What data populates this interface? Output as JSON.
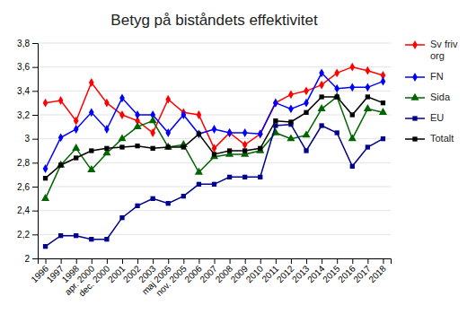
{
  "chart_data": {
    "type": "line",
    "title": "Betyg på biståndets effektivitet",
    "categories": [
      "1996",
      "1997",
      "1998",
      "apr. 2000",
      "dec. 2000",
      "2001",
      "2002",
      "2003",
      "maj 2005",
      "nov. 2005",
      "2006",
      "2007",
      "2008",
      "2009",
      "2010",
      "2011",
      "2012",
      "2013",
      "2014",
      "2015",
      "2016",
      "2017",
      "2018"
    ],
    "series": [
      {
        "name": "Sv friv\norg",
        "color": "#ff0000",
        "marker": "diamond",
        "values": [
          3.3,
          3.32,
          3.15,
          3.47,
          3.3,
          3.2,
          3.15,
          3.05,
          3.33,
          3.22,
          3.2,
          2.92,
          3.05,
          2.95,
          3.04,
          3.3,
          3.37,
          3.4,
          3.45,
          3.55,
          3.6,
          3.57,
          3.53
        ]
      },
      {
        "name": "FN",
        "color": "#0000ff",
        "marker": "diamond",
        "values": [
          2.75,
          3.01,
          3.08,
          3.22,
          3.08,
          3.34,
          3.2,
          3.2,
          3.05,
          3.2,
          3.04,
          3.08,
          3.05,
          3.05,
          3.04,
          3.3,
          3.25,
          3.3,
          3.55,
          3.42,
          3.43,
          3.43,
          3.48
        ]
      },
      {
        "name": "Sida",
        "color": "#006400",
        "marker": "triangle",
        "values": [
          2.5,
          2.78,
          2.92,
          2.74,
          2.88,
          3.0,
          3.1,
          3.15,
          2.93,
          2.95,
          2.72,
          2.85,
          2.87,
          2.87,
          2.9,
          3.05,
          3.0,
          3.03,
          3.25,
          3.35,
          3.0,
          3.25,
          3.22
        ]
      },
      {
        "name": "EU",
        "color": "#00008b",
        "marker": "square",
        "values": [
          2.1,
          2.19,
          2.19,
          2.16,
          2.16,
          2.34,
          2.44,
          2.5,
          2.46,
          2.52,
          2.62,
          2.62,
          2.68,
          2.68,
          2.68,
          3.11,
          3.12,
          2.9,
          3.11,
          3.05,
          2.77,
          2.93,
          3.0
        ]
      },
      {
        "name": "Totalt",
        "color": "#000000",
        "marker": "square",
        "values": [
          2.67,
          2.78,
          2.84,
          2.9,
          2.92,
          2.93,
          2.94,
          2.92,
          2.93,
          2.93,
          3.04,
          2.87,
          2.9,
          2.9,
          2.92,
          3.15,
          3.14,
          3.22,
          3.35,
          3.35,
          3.2,
          3.35,
          3.3
        ]
      }
    ],
    "ylim": [
      2.0,
      3.8
    ],
    "yticks": [
      2,
      {
        "value": 2.2,
        "label": "2,2"
      },
      {
        "value": 2.4,
        "label": "2,4"
      },
      {
        "value": 2.6,
        "label": "2,6"
      },
      {
        "value": 2.8,
        "label": "2,8"
      },
      3,
      {
        "value": 3.2,
        "label": "3,2"
      },
      {
        "value": 3.4,
        "label": "3,4"
      },
      {
        "value": 3.6,
        "label": "3,6"
      },
      {
        "value": 3.8,
        "label": "3,8"
      }
    ],
    "grid": true,
    "legend": "right"
  }
}
